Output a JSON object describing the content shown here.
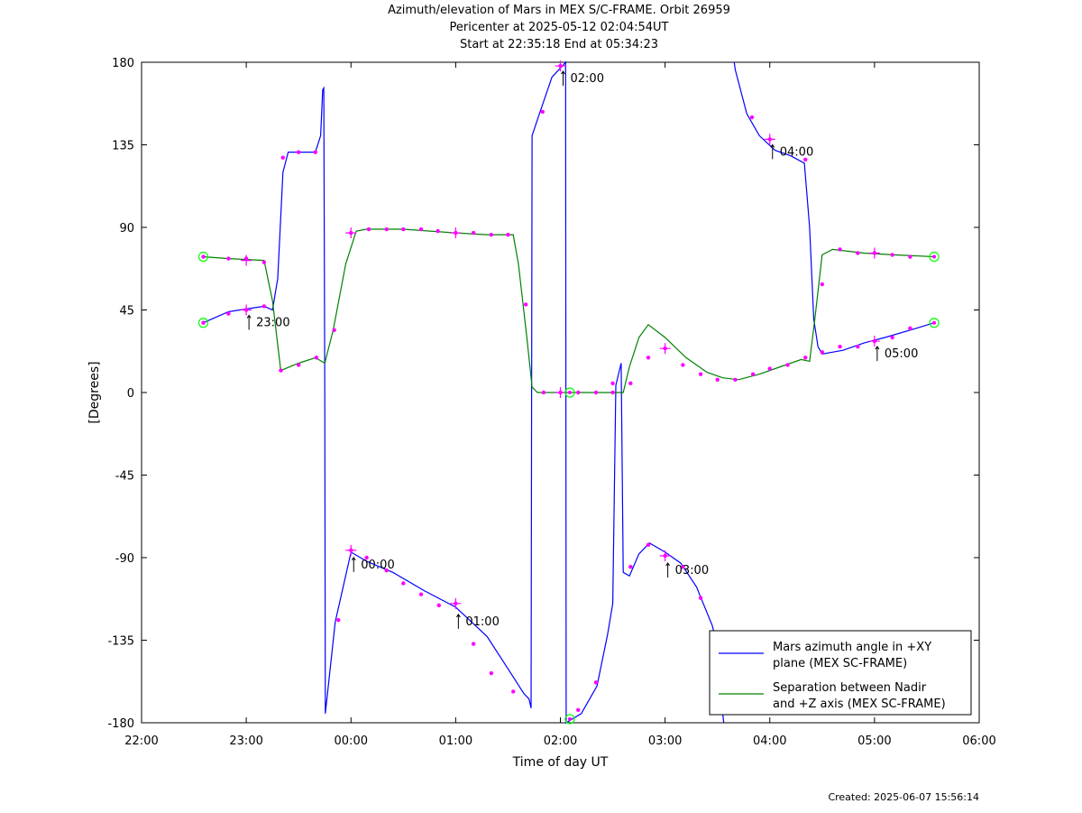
{
  "chart_data": {
    "type": "line",
    "title": "Azimuth/elevation of Mars in MEX S/C-FRAME.  Orbit 26959",
    "subtitle_1": "Pericenter at 2025-05-12 02:04:54UT",
    "subtitle_2": "Start at 22:35:18 End at 05:34:23",
    "xlabel": "Time of day UT",
    "ylabel": "[Degrees]",
    "x_unit": "hours since 22:00",
    "xlim": [
      0,
      8
    ],
    "ylim": [
      -180,
      180
    ],
    "x_ticks": [
      {
        "v": 0,
        "label": "22:00"
      },
      {
        "v": 1,
        "label": "23:00"
      },
      {
        "v": 2,
        "label": "00:00"
      },
      {
        "v": 3,
        "label": "01:00"
      },
      {
        "v": 4,
        "label": "02:00"
      },
      {
        "v": 5,
        "label": "03:00"
      },
      {
        "v": 6,
        "label": "04:00"
      },
      {
        "v": 7,
        "label": "05:00"
      },
      {
        "v": 8,
        "label": "06:00"
      }
    ],
    "y_ticks": [
      {
        "v": 180,
        "label": "180"
      },
      {
        "v": 135,
        "label": "135"
      },
      {
        "v": 90,
        "label": "90"
      },
      {
        "v": 45,
        "label": "45"
      },
      {
        "v": 0,
        "label": "0"
      },
      {
        "v": -45,
        "label": "-45"
      },
      {
        "v": -90,
        "label": "-90"
      },
      {
        "v": -135,
        "label": "-135"
      },
      {
        "v": -180,
        "label": "-180"
      }
    ],
    "series": [
      {
        "name": "Mars azimuth angle in +XY plane (MEX SC-FRAME)",
        "color": "#0000ff",
        "points": [
          [
            0.59,
            38
          ],
          [
            0.83,
            44
          ],
          [
            1.17,
            47
          ],
          [
            1.25,
            45
          ],
          [
            1.3,
            62
          ],
          [
            1.35,
            120
          ],
          [
            1.4,
            131
          ],
          [
            1.55,
            131
          ],
          [
            1.66,
            131
          ],
          [
            1.71,
            140
          ],
          [
            1.73,
            165
          ],
          [
            1.74,
            166
          ],
          [
            1.75,
            0
          ],
          [
            1.755,
            -175
          ],
          [
            1.85,
            -125
          ],
          [
            2.0,
            -87
          ],
          [
            2.15,
            -92
          ],
          [
            2.4,
            -98
          ],
          [
            2.7,
            -108
          ],
          [
            3.0,
            -117
          ],
          [
            3.3,
            -133
          ],
          [
            3.55,
            -155
          ],
          [
            3.65,
            -164
          ],
          [
            3.7,
            -167
          ],
          [
            3.72,
            -172
          ],
          [
            3.73,
            140
          ],
          [
            3.8,
            152
          ],
          [
            3.92,
            172
          ],
          [
            4.02,
            178
          ],
          [
            4.05,
            180
          ],
          [
            4.055,
            -180
          ],
          [
            4.2,
            -175
          ],
          [
            4.35,
            -160
          ],
          [
            4.45,
            -132
          ],
          [
            4.5,
            -115
          ],
          [
            4.53,
            4
          ],
          [
            4.58,
            16
          ],
          [
            4.6,
            -98
          ],
          [
            4.66,
            -100
          ],
          [
            4.75,
            -88
          ],
          [
            4.85,
            -82
          ],
          [
            5.0,
            -87
          ],
          [
            5.15,
            -93
          ],
          [
            5.3,
            -106
          ],
          [
            5.45,
            -127
          ],
          [
            5.5,
            -138
          ],
          [
            5.55,
            -175
          ],
          [
            5.56,
            -180
          ]
        ],
        "points_2": [
          [
            5.66,
            180
          ],
          [
            5.67,
            176
          ],
          [
            5.78,
            152
          ],
          [
            5.9,
            140
          ],
          [
            6.05,
            132
          ],
          [
            6.2,
            129
          ],
          [
            6.33,
            125
          ],
          [
            6.38,
            90
          ],
          [
            6.42,
            40
          ],
          [
            6.46,
            25
          ],
          [
            6.5,
            21
          ],
          [
            6.7,
            23
          ],
          [
            6.9,
            27
          ],
          [
            7.1,
            30
          ],
          [
            7.4,
            35
          ],
          [
            7.57,
            38
          ]
        ],
        "markers": [
          [
            0.59,
            38
          ],
          [
            0.83,
            43
          ],
          [
            1.0,
            45
          ],
          [
            1.17,
            47
          ],
          [
            1.35,
            128
          ],
          [
            1.5,
            131
          ],
          [
            1.66,
            131
          ],
          [
            1.88,
            -124
          ],
          [
            2.0,
            -86
          ],
          [
            2.15,
            -90
          ],
          [
            2.34,
            -97
          ],
          [
            2.5,
            -104
          ],
          [
            2.67,
            -110
          ],
          [
            2.84,
            -116
          ],
          [
            3.0,
            -115
          ],
          [
            3.17,
            -137
          ],
          [
            3.34,
            -153
          ],
          [
            3.55,
            -163
          ],
          [
            3.83,
            153
          ],
          [
            4.0,
            178
          ],
          [
            4.17,
            -173
          ],
          [
            4.34,
            -158
          ],
          [
            4.5,
            5
          ],
          [
            4.67,
            -95
          ],
          [
            4.84,
            -83
          ],
          [
            5.0,
            -89
          ],
          [
            5.17,
            -95
          ],
          [
            5.34,
            -112
          ],
          [
            5.83,
            150
          ],
          [
            6.0,
            138
          ],
          [
            6.34,
            127
          ],
          [
            6.5,
            22
          ],
          [
            6.67,
            25
          ],
          [
            6.84,
            25
          ],
          [
            7.0,
            28
          ],
          [
            7.17,
            30
          ],
          [
            7.34,
            35
          ]
        ]
      },
      {
        "name": "Separation between Nadir and +Z axis (MEX SC-FRAME)",
        "color": "#008000",
        "points": [
          [
            0.59,
            74
          ],
          [
            0.83,
            73
          ],
          [
            1.17,
            72
          ],
          [
            1.25,
            50
          ],
          [
            1.33,
            12
          ],
          [
            1.5,
            16
          ],
          [
            1.66,
            19
          ],
          [
            1.75,
            16
          ],
          [
            1.83,
            34
          ],
          [
            1.95,
            70
          ],
          [
            2.05,
            88
          ],
          [
            2.15,
            89
          ],
          [
            2.5,
            89
          ],
          [
            3.0,
            87
          ],
          [
            3.3,
            86
          ],
          [
            3.55,
            86
          ],
          [
            3.6,
            70
          ],
          [
            3.68,
            30
          ],
          [
            3.73,
            3
          ],
          [
            3.78,
            0
          ],
          [
            4.0,
            0
          ],
          [
            4.3,
            0
          ],
          [
            4.6,
            0
          ],
          [
            4.66,
            14
          ],
          [
            4.75,
            30
          ],
          [
            4.84,
            37
          ],
          [
            5.0,
            30
          ],
          [
            5.2,
            19
          ],
          [
            5.4,
            11
          ],
          [
            5.55,
            8
          ],
          [
            5.7,
            7
          ],
          [
            5.9,
            10
          ],
          [
            6.1,
            14
          ],
          [
            6.3,
            18
          ],
          [
            6.38,
            17
          ],
          [
            6.43,
            40
          ],
          [
            6.5,
            75
          ],
          [
            6.6,
            78
          ],
          [
            6.9,
            76
          ],
          [
            7.2,
            75
          ],
          [
            7.57,
            74
          ]
        ],
        "markers": [
          [
            0.59,
            74
          ],
          [
            0.83,
            73
          ],
          [
            1.0,
            73
          ],
          [
            1.17,
            71
          ],
          [
            1.33,
            12
          ],
          [
            1.5,
            15
          ],
          [
            1.67,
            19
          ],
          [
            1.84,
            34
          ],
          [
            2.0,
            87
          ],
          [
            2.17,
            89
          ],
          [
            2.34,
            89
          ],
          [
            2.5,
            89
          ],
          [
            2.67,
            89
          ],
          [
            2.83,
            88
          ],
          [
            3.0,
            87
          ],
          [
            3.17,
            87
          ],
          [
            3.34,
            86
          ],
          [
            3.5,
            86
          ],
          [
            3.67,
            48
          ],
          [
            3.84,
            0
          ],
          [
            4.0,
            0
          ],
          [
            4.17,
            0
          ],
          [
            4.34,
            0
          ],
          [
            4.5,
            0
          ],
          [
            4.67,
            5
          ],
          [
            4.84,
            19
          ],
          [
            5.0,
            24
          ],
          [
            5.17,
            15
          ],
          [
            5.34,
            10
          ],
          [
            5.5,
            7
          ],
          [
            5.67,
            7
          ],
          [
            5.84,
            10
          ],
          [
            6.0,
            13
          ],
          [
            6.17,
            15
          ],
          [
            6.34,
            19
          ],
          [
            6.5,
            59
          ],
          [
            6.67,
            78
          ],
          [
            6.84,
            76
          ],
          [
            7.0,
            76
          ],
          [
            7.17,
            75
          ],
          [
            7.34,
            74
          ]
        ]
      }
    ],
    "hour_crosses": [
      [
        1.0,
        45
      ],
      [
        1.0,
        72
      ],
      [
        2.0,
        87
      ],
      [
        2.0,
        -86
      ],
      [
        3.0,
        87
      ],
      [
        3.0,
        -115
      ],
      [
        4.0,
        178
      ],
      [
        4.0,
        0
      ],
      [
        5.0,
        24
      ],
      [
        5.0,
        -89
      ],
      [
        6.0,
        138
      ],
      [
        7.0,
        28
      ],
      [
        7.0,
        76
      ]
    ],
    "start_end_circles": [
      [
        0.59,
        38
      ],
      [
        0.59,
        74
      ],
      [
        7.57,
        38
      ],
      [
        7.57,
        74
      ],
      [
        4.09,
        0
      ],
      [
        4.09,
        -178
      ]
    ],
    "annotations": [
      {
        "x": 1.0,
        "y": 45,
        "text": "23:00"
      },
      {
        "x": 2.0,
        "y": -87,
        "text": "00:00"
      },
      {
        "x": 3.0,
        "y": -118,
        "text": "01:00"
      },
      {
        "x": 4.0,
        "y": 178,
        "text": "02:00"
      },
      {
        "x": 5.0,
        "y": -90,
        "text": "03:00"
      },
      {
        "x": 6.0,
        "y": 138,
        "text": "04:00"
      },
      {
        "x": 7.0,
        "y": 28,
        "text": "05:00"
      }
    ],
    "legend": {
      "position": "bottom-right",
      "entries": [
        {
          "line1": "Mars azimuth angle in +XY",
          "line2": "plane (MEX SC-FRAME)",
          "color": "#0000ff"
        },
        {
          "line1": "Separation between Nadir",
          "line2": "and +Z axis (MEX SC-FRAME)",
          "color": "#008000"
        }
      ]
    },
    "grid": false,
    "marker_color": "#ff00ff",
    "circle_color": "#00ff00"
  },
  "footer": {
    "created": "Created: 2025-06-07 15:56:14"
  }
}
